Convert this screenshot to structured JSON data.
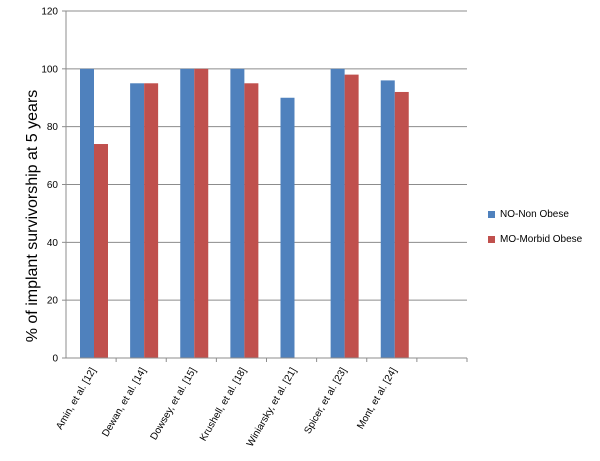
{
  "chart_data": {
    "type": "bar",
    "title": "",
    "xlabel": "",
    "ylabel": "% of implant survivorship at 5 years",
    "ylim": [
      0,
      120
    ],
    "yticks": [
      0,
      20,
      40,
      60,
      80,
      100,
      120
    ],
    "grid": true,
    "legend_position": "right",
    "categories": [
      "Amin, et al. [12]",
      "Dewan, et al. [14]",
      "Dowsey, et al. [15]",
      "Krushell, et al. [18]",
      "Winiarsky, et al. [21]",
      "Spicer, et al. [23]",
      "Mont, et al. [24]"
    ],
    "series": [
      {
        "name": "NO-Non Obese",
        "color": "#4f81bd",
        "values": [
          100,
          95,
          100,
          100,
          90,
          100,
          96
        ]
      },
      {
        "name": "MO-Morbid Obese",
        "color": "#c0504d",
        "values": [
          74,
          95,
          100,
          95,
          null,
          98,
          92
        ]
      }
    ]
  }
}
